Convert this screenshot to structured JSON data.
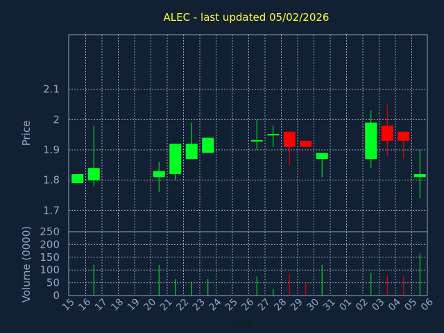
{
  "chart_data": {
    "type": "candlestick",
    "title": "ALEC - last updated 05/02/2026",
    "xlabel": "Day",
    "ylabel": "Price",
    "volume_ylabel": "Volume (0000)",
    "price_ylim": [
      1.63,
      2.28
    ],
    "price_yticks": [
      1.7,
      1.8,
      1.9,
      2,
      2.1
    ],
    "price_ytick_labels": [
      "1.7",
      "1.8",
      "1.9",
      "2",
      "2.1"
    ],
    "volume_ylim": [
      0,
      250
    ],
    "volume_yticks": [
      0,
      50,
      100,
      150,
      200,
      250
    ],
    "volume_ytick_labels": [
      "0",
      "50",
      "100",
      "150",
      "200",
      "250"
    ],
    "x_labels": [
      "15",
      "16",
      "17",
      "18",
      "19",
      "20",
      "21",
      "22",
      "23",
      "24",
      "25",
      "26",
      "27",
      "28",
      "29",
      "30",
      "31",
      "01",
      "02",
      "03",
      "04",
      "05",
      "06"
    ],
    "grid": true,
    "colors": {
      "background": "#112033",
      "plot_border": "#8fa7c9",
      "grid": "#c8d2df",
      "title": "#ffff33",
      "axis_text": "#8fa7c9",
      "up": "#00ff22",
      "down": "#ff0000"
    },
    "candles": [
      {
        "day": "15",
        "open": 1.79,
        "high": 1.82,
        "low": 1.79,
        "close": 1.82,
        "volume": 0
      },
      {
        "day": "16",
        "open": 1.8,
        "high": 1.98,
        "low": 1.78,
        "close": 1.84,
        "volume": 120
      },
      {
        "day": "20",
        "open": 1.81,
        "high": 1.86,
        "low": 1.76,
        "close": 1.83,
        "volume": 120
      },
      {
        "day": "21",
        "open": 1.82,
        "high": 1.92,
        "low": 1.8,
        "close": 1.92,
        "volume": 65
      },
      {
        "day": "22",
        "open": 1.87,
        "high": 1.99,
        "low": 1.87,
        "close": 1.92,
        "volume": 55
      },
      {
        "day": "23",
        "open": 1.89,
        "high": 1.94,
        "low": 1.89,
        "close": 1.94,
        "volume": 65
      },
      {
        "day": "26",
        "open": 1.93,
        "high": 2.0,
        "low": 1.9,
        "close": 1.93,
        "volume": 75
      },
      {
        "day": "27",
        "open": 1.95,
        "high": 1.98,
        "low": 1.91,
        "close": 1.95,
        "volume": 25
      },
      {
        "day": "28",
        "open": 1.96,
        "high": 1.96,
        "low": 1.85,
        "close": 1.91,
        "volume": 85
      },
      {
        "day": "29",
        "open": 1.93,
        "high": 1.93,
        "low": 1.91,
        "close": 1.91,
        "volume": 50
      },
      {
        "day": "30",
        "open": 1.87,
        "high": 1.89,
        "low": 1.81,
        "close": 1.89,
        "volume": 120
      },
      {
        "day": "02",
        "open": 1.87,
        "high": 2.03,
        "low": 1.84,
        "close": 1.99,
        "volume": 90
      },
      {
        "day": "03",
        "open": 1.98,
        "high": 2.05,
        "low": 1.88,
        "close": 1.93,
        "volume": 80
      },
      {
        "day": "04",
        "open": 1.96,
        "high": 1.96,
        "low": 1.87,
        "close": 1.93,
        "volume": 75
      },
      {
        "day": "05",
        "open": 1.81,
        "high": 1.9,
        "low": 1.74,
        "close": 1.82,
        "volume": 165
      }
    ]
  }
}
